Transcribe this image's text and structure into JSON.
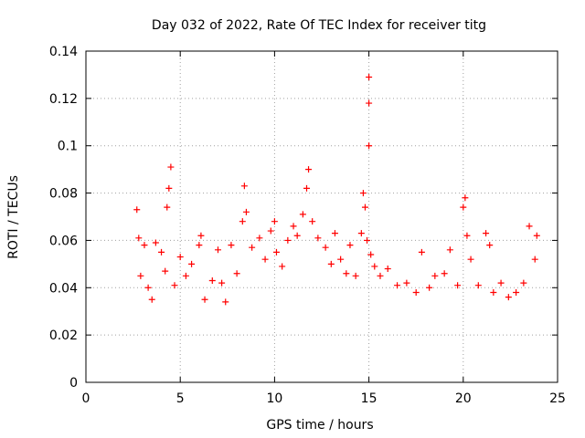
{
  "chart_data": {
    "type": "scatter",
    "title": "Day 032 of 2022, Rate Of TEC Index for receiver titg",
    "xlabel": "GPS time / hours",
    "ylabel": "ROTI / TECUs",
    "xlim": [
      0,
      25
    ],
    "ylim": [
      0,
      0.14
    ],
    "x_ticks": [
      0,
      5,
      10,
      15,
      20,
      25
    ],
    "x_tick_labels": [
      "0",
      "5",
      "10",
      "15",
      "20",
      "25"
    ],
    "y_ticks": [
      0,
      0.02,
      0.04,
      0.06,
      0.08,
      0.1,
      0.12,
      0.14
    ],
    "y_tick_labels": [
      "0",
      "0.02",
      "0.04",
      "0.06",
      "0.08",
      "0.1",
      "0.12",
      "0.14"
    ],
    "grid": true,
    "marker": "plus",
    "color": "#ff0000",
    "series": [
      {
        "x": [
          2.7,
          2.8,
          2.9,
          3.1,
          3.3,
          3.5,
          3.7,
          4.0,
          4.2,
          4.3,
          4.4,
          4.5,
          4.7,
          5.0,
          5.3,
          5.6,
          6.0,
          6.1,
          6.3,
          6.7,
          7.0,
          7.2,
          7.4,
          7.7,
          8.0,
          8.3,
          8.4,
          8.5,
          8.8,
          9.2,
          9.5,
          9.8,
          10.0,
          10.1,
          10.4,
          10.7,
          11.0,
          11.2,
          11.5,
          11.7,
          11.8,
          12.0,
          12.3,
          12.7,
          13.0,
          13.2,
          13.5,
          13.8,
          14.0,
          14.3,
          14.6,
          14.7,
          14.8,
          14.9,
          15.0,
          15.0,
          15.0,
          15.1,
          15.3,
          15.6,
          16.0,
          16.5,
          17.0,
          17.5,
          17.8,
          18.2,
          18.5,
          19.0,
          19.3,
          19.7,
          20.0,
          20.1,
          20.2,
          20.4,
          20.8,
          21.2,
          21.4,
          21.6,
          22.0,
          22.4,
          22.8,
          23.2,
          23.5,
          23.8,
          23.9
        ],
        "y": [
          0.073,
          0.061,
          0.045,
          0.058,
          0.04,
          0.035,
          0.059,
          0.055,
          0.047,
          0.074,
          0.082,
          0.091,
          0.041,
          0.053,
          0.045,
          0.05,
          0.058,
          0.062,
          0.035,
          0.043,
          0.056,
          0.042,
          0.034,
          0.058,
          0.046,
          0.068,
          0.083,
          0.072,
          0.057,
          0.061,
          0.052,
          0.064,
          0.068,
          0.055,
          0.049,
          0.06,
          0.066,
          0.062,
          0.071,
          0.082,
          0.09,
          0.068,
          0.061,
          0.057,
          0.05,
          0.063,
          0.052,
          0.046,
          0.058,
          0.045,
          0.063,
          0.08,
          0.074,
          0.06,
          0.1,
          0.118,
          0.129,
          0.054,
          0.049,
          0.045,
          0.048,
          0.041,
          0.042,
          0.038,
          0.055,
          0.04,
          0.045,
          0.046,
          0.056,
          0.041,
          0.074,
          0.078,
          0.062,
          0.052,
          0.041,
          0.063,
          0.058,
          0.038,
          0.042,
          0.036,
          0.038,
          0.042,
          0.066,
          0.052,
          0.062
        ]
      }
    ]
  }
}
